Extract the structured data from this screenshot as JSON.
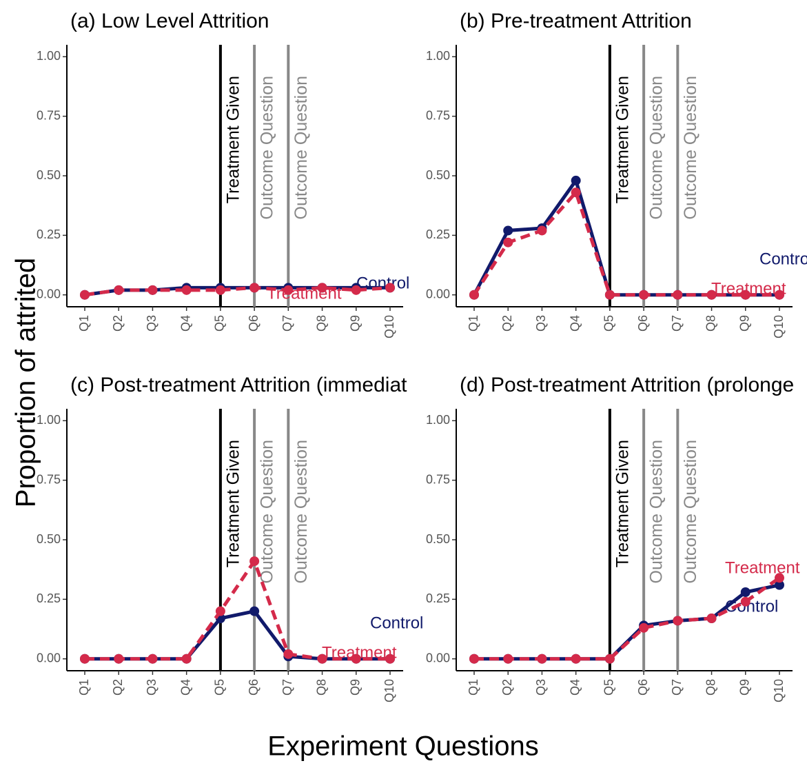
{
  "ylabel": "Proportion of attrited",
  "xlabel": "Experiment Questions",
  "chart_data": [
    {
      "type": "line",
      "title": "(a) Low Level Attrition",
      "categories": [
        "Q1",
        "Q2",
        "Q3",
        "Q4",
        "Q5",
        "Q6",
        "Q7",
        "Q8",
        "Q9",
        "Q10"
      ],
      "series": [
        {
          "name": "Control",
          "color": "#111a6b",
          "dash": false,
          "values": [
            0,
            0.02,
            0.02,
            0.03,
            0.03,
            0.03,
            0.03,
            0.03,
            0.03,
            0.03
          ]
        },
        {
          "name": "Treatment",
          "color": "#d42a4a",
          "dash": true,
          "values": [
            0,
            0.02,
            0.02,
            0.02,
            0.02,
            0.03,
            0.02,
            0.03,
            0.02,
            0.03
          ]
        }
      ],
      "vlines": [
        {
          "x": "Q5",
          "label": "Treatment Given",
          "color": "#000000"
        },
        {
          "x": "Q6",
          "label": "Outcome Question",
          "color": "#888888"
        },
        {
          "x": "Q7",
          "label": "Outcome Question",
          "color": "#888888"
        }
      ],
      "ylim": [
        -0.05,
        1.05
      ],
      "yticks": [
        {
          "value": 0,
          "label": "0.00"
        },
        {
          "value": 0.25,
          "label": "0.25"
        },
        {
          "value": 0.5,
          "label": "0.50"
        },
        {
          "value": 0.75,
          "label": "0.75"
        },
        {
          "value": 1,
          "label": "1.00"
        }
      ]
    },
    {
      "type": "line",
      "title": "(b) Pre-treatment Attrition",
      "categories": [
        "Q1",
        "Q2",
        "Q3",
        "Q4",
        "Q5",
        "Q6",
        "Q7",
        "Q8",
        "Q9",
        "Q10"
      ],
      "series": [
        {
          "name": "Control",
          "color": "#111a6b",
          "dash": false,
          "values": [
            0,
            0.27,
            0.28,
            0.48,
            0,
            0,
            0,
            0,
            0,
            0
          ]
        },
        {
          "name": "Treatment",
          "color": "#d42a4a",
          "dash": true,
          "values": [
            0,
            0.22,
            0.27,
            0.43,
            0,
            0,
            0,
            0,
            0,
            0
          ]
        }
      ],
      "vlines": [
        {
          "x": "Q5",
          "label": "Treatment Given",
          "color": "#000000"
        },
        {
          "x": "Q6",
          "label": "Outcome Question",
          "color": "#888888"
        },
        {
          "x": "Q7",
          "label": "Outcome Question",
          "color": "#888888"
        }
      ],
      "ylim": [
        -0.05,
        1.05
      ],
      "yticks": [
        {
          "value": 0,
          "label": "0.00"
        },
        {
          "value": 0.25,
          "label": "0.25"
        },
        {
          "value": 0.5,
          "label": "0.50"
        },
        {
          "value": 0.75,
          "label": "0.75"
        },
        {
          "value": 1,
          "label": "1.00"
        }
      ]
    },
    {
      "type": "line",
      "title": "(c) Post-treatment Attrition (immediat",
      "categories": [
        "Q1",
        "Q2",
        "Q3",
        "Q4",
        "Q5",
        "Q6",
        "Q7",
        "Q8",
        "Q9",
        "Q10"
      ],
      "series": [
        {
          "name": "Control",
          "color": "#111a6b",
          "dash": false,
          "values": [
            0,
            0,
            0,
            0,
            0.17,
            0.2,
            0.01,
            0,
            0,
            0
          ]
        },
        {
          "name": "Treatment",
          "color": "#d42a4a",
          "dash": true,
          "values": [
            0,
            0,
            0,
            0,
            0.2,
            0.41,
            0.02,
            0,
            0,
            0
          ]
        }
      ],
      "vlines": [
        {
          "x": "Q5",
          "label": "Treatment Given",
          "color": "#000000"
        },
        {
          "x": "Q6",
          "label": "Outcome Question",
          "color": "#888888"
        },
        {
          "x": "Q7",
          "label": "Outcome Question",
          "color": "#888888"
        }
      ],
      "ylim": [
        -0.05,
        1.05
      ],
      "yticks": [
        {
          "value": 0,
          "label": "0.00"
        },
        {
          "value": 0.25,
          "label": "0.25"
        },
        {
          "value": 0.5,
          "label": "0.50"
        },
        {
          "value": 0.75,
          "label": "0.75"
        },
        {
          "value": 1,
          "label": "1.00"
        }
      ]
    },
    {
      "type": "line",
      "title": "(d) Post-treatment Attrition (prolonge",
      "categories": [
        "Q1",
        "Q2",
        "Q3",
        "Q4",
        "Q5",
        "Q6",
        "Q7",
        "Q8",
        "Q9",
        "Q10"
      ],
      "series": [
        {
          "name": "Control",
          "color": "#111a6b",
          "dash": false,
          "values": [
            0,
            0,
            0,
            0,
            0,
            0.14,
            0.16,
            0.17,
            0.28,
            0.31
          ]
        },
        {
          "name": "Treatment",
          "color": "#d42a4a",
          "dash": true,
          "values": [
            0,
            0,
            0,
            0,
            0,
            0.13,
            0.16,
            0.17,
            0.24,
            0.34
          ]
        }
      ],
      "vlines": [
        {
          "x": "Q5",
          "label": "Treatment Given",
          "color": "#000000"
        },
        {
          "x": "Q6",
          "label": "Outcome Question",
          "color": "#888888"
        },
        {
          "x": "Q7",
          "label": "Outcome Question",
          "color": "#888888"
        }
      ],
      "ylim": [
        -0.05,
        1.05
      ],
      "yticks": [
        {
          "value": 0,
          "label": "0.00"
        },
        {
          "value": 0.25,
          "label": "0.25"
        },
        {
          "value": 0.5,
          "label": "0.50"
        },
        {
          "value": 0.75,
          "label": "0.75"
        },
        {
          "value": 1,
          "label": "1.00"
        }
      ]
    }
  ]
}
